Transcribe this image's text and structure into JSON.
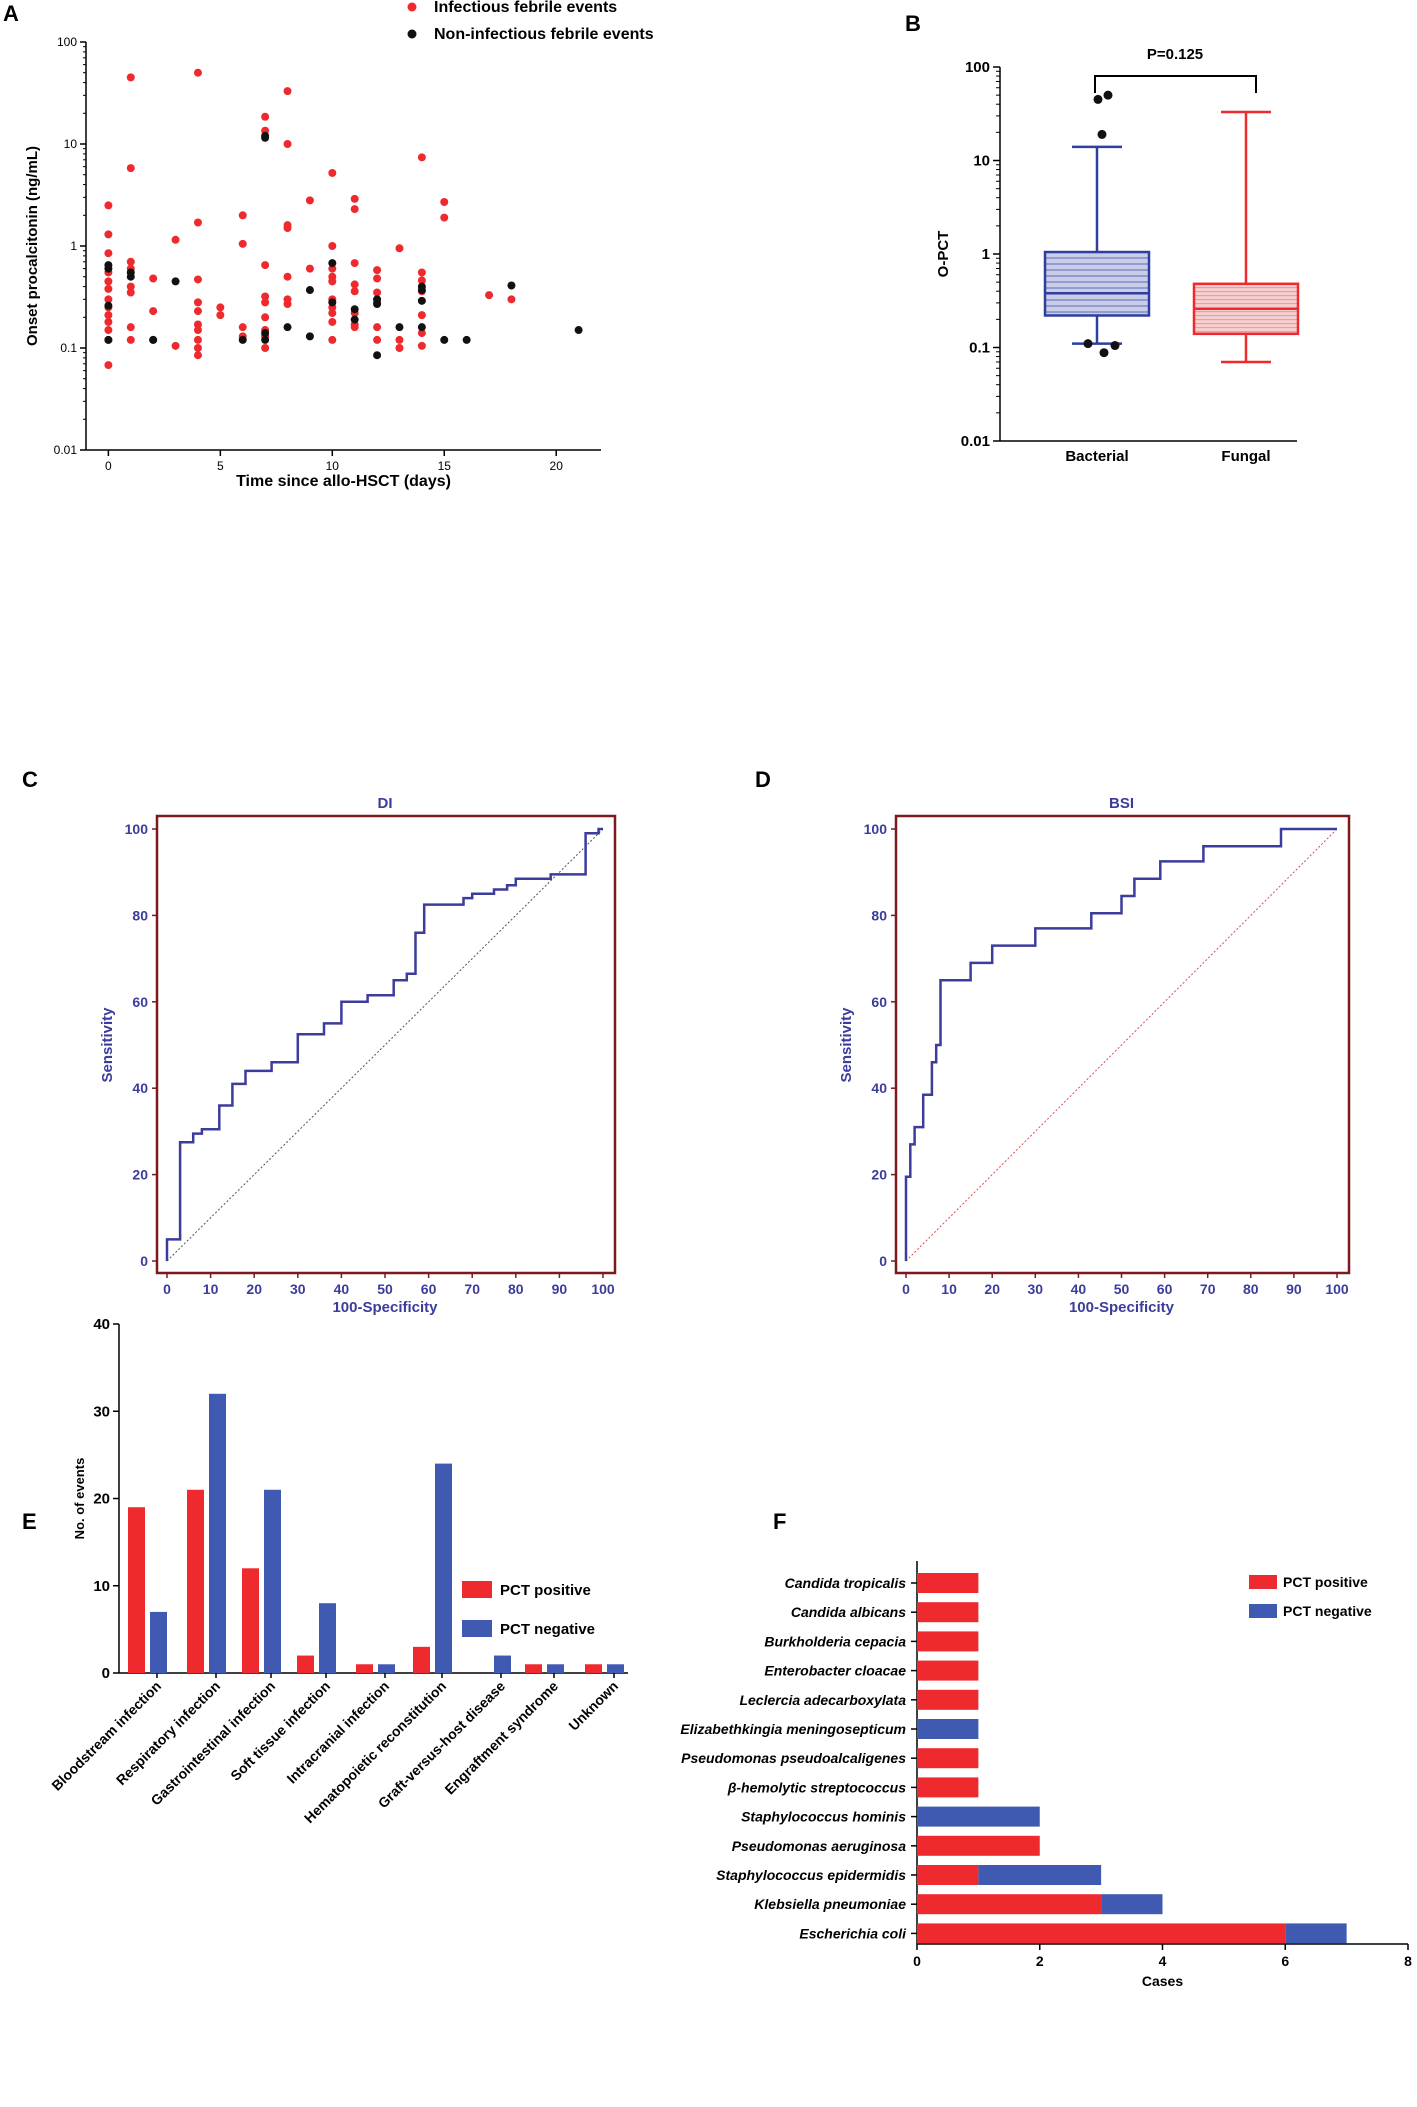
{
  "colors": {
    "red": "#ee2a2e",
    "black": "#111111",
    "blue": "#2e3f9e",
    "redBar": "#ee2a2e",
    "blueBar": "#3f5ab0",
    "roc": "#3b3c9c",
    "maroon": "#7a1a1e",
    "dot": "#555555",
    "diagRed": "#d85050"
  },
  "panel_labels": [
    "A",
    "B",
    "C",
    "D",
    "E",
    "F"
  ],
  "chart_data": [
    {
      "id": "A",
      "type": "scatter",
      "xlabel": "Time since allo-HSCT (days)",
      "ylabel": "Onset procalcitonin (ng/mL)",
      "yscale": "log",
      "xlim": [
        -1,
        22
      ],
      "ylim": [
        0.01,
        100
      ],
      "xticks": [
        0,
        5,
        10,
        15,
        20
      ],
      "yticks": [
        0.01,
        0.1,
        1,
        10,
        100
      ],
      "ytick_labels": [
        "0.01",
        "0.1",
        "1",
        "10",
        "100"
      ],
      "legend": [
        "Infectious febrile events",
        "Non-infectious febrile events"
      ],
      "series": [
        {
          "name": "Infectious febrile events",
          "points": [
            [
              0,
              2.5
            ],
            [
              0,
              1.3
            ],
            [
              0,
              0.85
            ],
            [
              0,
              0.55
            ],
            [
              0,
              0.45
            ],
            [
              0,
              0.38
            ],
            [
              0,
              0.3
            ],
            [
              0,
              0.25
            ],
            [
              0,
              0.21
            ],
            [
              0,
              0.18
            ],
            [
              0,
              0.15
            ],
            [
              0,
              0.12
            ],
            [
              0,
              0.068
            ],
            [
              1,
              45
            ],
            [
              1,
              5.8
            ],
            [
              1,
              0.7
            ],
            [
              1,
              0.6
            ],
            [
              1,
              0.4
            ],
            [
              1,
              0.35
            ],
            [
              1,
              0.16
            ],
            [
              1,
              0.12
            ],
            [
              2,
              0.48
            ],
            [
              2,
              0.23
            ],
            [
              2,
              0.12
            ],
            [
              3,
              1.15
            ],
            [
              3,
              0.105
            ],
            [
              4,
              50
            ],
            [
              4,
              1.7
            ],
            [
              4,
              0.47
            ],
            [
              4,
              0.28
            ],
            [
              4,
              0.23
            ],
            [
              4,
              0.17
            ],
            [
              4,
              0.15
            ],
            [
              4,
              0.12
            ],
            [
              4,
              0.1
            ],
            [
              4,
              0.085
            ],
            [
              5,
              0.25
            ],
            [
              5,
              0.21
            ],
            [
              6,
              2
            ],
            [
              6,
              1.05
            ],
            [
              6,
              0.16
            ],
            [
              6,
              0.13
            ],
            [
              7,
              18.5
            ],
            [
              7,
              13.5
            ],
            [
              7,
              0.65
            ],
            [
              7,
              0.32
            ],
            [
              7,
              0.28
            ],
            [
              7,
              0.2
            ],
            [
              7,
              0.15
            ],
            [
              7,
              0.13
            ],
            [
              7,
              0.1
            ],
            [
              8,
              33
            ],
            [
              8,
              10
            ],
            [
              8,
              1.6
            ],
            [
              8,
              1.5
            ],
            [
              8,
              0.5
            ],
            [
              8,
              0.3
            ],
            [
              8,
              0.27
            ],
            [
              9,
              2.8
            ],
            [
              9,
              0.6
            ],
            [
              10,
              5.2
            ],
            [
              10,
              1.0
            ],
            [
              10,
              0.6
            ],
            [
              10,
              0.5
            ],
            [
              10,
              0.45
            ],
            [
              10,
              0.3
            ],
            [
              10,
              0.25
            ],
            [
              10,
              0.22
            ],
            [
              10,
              0.18
            ],
            [
              10,
              0.12
            ],
            [
              11,
              2.9
            ],
            [
              11,
              2.3
            ],
            [
              11,
              0.68
            ],
            [
              11,
              0.42
            ],
            [
              11,
              0.36
            ],
            [
              11,
              0.22
            ],
            [
              11,
              0.17
            ],
            [
              11,
              0.16
            ],
            [
              12,
              0.58
            ],
            [
              12,
              0.48
            ],
            [
              12,
              0.35
            ],
            [
              12,
              0.28
            ],
            [
              12,
              0.16
            ],
            [
              12,
              0.12
            ],
            [
              13,
              0.95
            ],
            [
              13,
              0.12
            ],
            [
              13,
              0.1
            ],
            [
              14,
              7.4
            ],
            [
              14,
              0.55
            ],
            [
              14,
              0.46
            ],
            [
              14,
              0.36
            ],
            [
              14,
              0.21
            ],
            [
              14,
              0.14
            ],
            [
              14,
              0.105
            ],
            [
              15,
              2.7
            ],
            [
              15,
              1.9
            ],
            [
              17,
              0.33
            ],
            [
              18,
              0.3
            ]
          ]
        },
        {
          "name": "Non-infectious febrile events",
          "points": [
            [
              0,
              0.65
            ],
            [
              0,
              0.6
            ],
            [
              0,
              0.26
            ],
            [
              0,
              0.12
            ],
            [
              1,
              0.55
            ],
            [
              1,
              0.5
            ],
            [
              2,
              0.12
            ],
            [
              3,
              0.45
            ],
            [
              6,
              0.12
            ],
            [
              7,
              12
            ],
            [
              7,
              11.5
            ],
            [
              7,
              0.14
            ],
            [
              7,
              0.12
            ],
            [
              8,
              0.16
            ],
            [
              9,
              0.37
            ],
            [
              9,
              0.13
            ],
            [
              10,
              0.68
            ],
            [
              10,
              0.28
            ],
            [
              11,
              0.24
            ],
            [
              11,
              0.19
            ],
            [
              12,
              0.3
            ],
            [
              12,
              0.27
            ],
            [
              12,
              0.085
            ],
            [
              13,
              0.16
            ],
            [
              14,
              0.4
            ],
            [
              14,
              0.37
            ],
            [
              14,
              0.29
            ],
            [
              14,
              0.16
            ],
            [
              15,
              0.12
            ],
            [
              16,
              0.12
            ],
            [
              18,
              0.41
            ],
            [
              21,
              0.15
            ]
          ]
        }
      ]
    },
    {
      "id": "B",
      "type": "box",
      "ylabel": "O-PCT",
      "yscale": "log",
      "ylim": [
        0.01,
        100
      ],
      "yticks": [
        0.01,
        0.1,
        1,
        10,
        100
      ],
      "ytick_labels": [
        "0.01",
        "0.1",
        "1",
        "10",
        "100"
      ],
      "categories": [
        "Bacterial",
        "Fungal"
      ],
      "p_label": "P=0.125",
      "boxes": [
        {
          "name": "Bacterial",
          "whisker_low": 0.11,
          "q1": 0.22,
          "median": 0.38,
          "q3": 1.05,
          "whisker_high": 14,
          "outliers": [
            45,
            50,
            19,
            0.11,
            0.105,
            0.088
          ]
        },
        {
          "name": "Fungal",
          "whisker_low": 0.07,
          "q1": 0.14,
          "median": 0.26,
          "q3": 0.48,
          "whisker_high": 33,
          "outliers": []
        }
      ]
    },
    {
      "id": "C",
      "type": "line",
      "title": "DI",
      "xlabel": "100-Specificity",
      "ylabel": "Sensitivity",
      "xlim": [
        0,
        100
      ],
      "ylim": [
        0,
        100
      ],
      "ticks": [
        0,
        10,
        20,
        30,
        40,
        50,
        60,
        70,
        80,
        90,
        100
      ],
      "yticks": [
        0,
        20,
        40,
        60,
        80,
        100
      ],
      "roc": [
        [
          0,
          0
        ],
        [
          0,
          5
        ],
        [
          3,
          5
        ],
        [
          3,
          27.5
        ],
        [
          6,
          27.5
        ],
        [
          6,
          29.5
        ],
        [
          8,
          29.5
        ],
        [
          8,
          30.5
        ],
        [
          12,
          30.5
        ],
        [
          12,
          36
        ],
        [
          15,
          36
        ],
        [
          15,
          41
        ],
        [
          18,
          41
        ],
        [
          18,
          44
        ],
        [
          24,
          44
        ],
        [
          24,
          46
        ],
        [
          30,
          46
        ],
        [
          30,
          52.5
        ],
        [
          36,
          52.5
        ],
        [
          36,
          55
        ],
        [
          40,
          55
        ],
        [
          40,
          57
        ],
        [
          40,
          60
        ],
        [
          46,
          60
        ],
        [
          46,
          61.5
        ],
        [
          52,
          61.5
        ],
        [
          52,
          65
        ],
        [
          55,
          65
        ],
        [
          55,
          66.5
        ],
        [
          57,
          66.5
        ],
        [
          57,
          76
        ],
        [
          59,
          76
        ],
        [
          59,
          82.5
        ],
        [
          68,
          82.5
        ],
        [
          68,
          84
        ],
        [
          70,
          84
        ],
        [
          70,
          85
        ],
        [
          75,
          85
        ],
        [
          75,
          86
        ],
        [
          78,
          86
        ],
        [
          78,
          87
        ],
        [
          80,
          87
        ],
        [
          80,
          88.5
        ],
        [
          88,
          88.5
        ],
        [
          88,
          89.5
        ],
        [
          96,
          89.5
        ],
        [
          96,
          99
        ],
        [
          99,
          99
        ],
        [
          99,
          100
        ],
        [
          100,
          100
        ]
      ]
    },
    {
      "id": "D",
      "type": "line",
      "title": "BSI",
      "xlabel": "100-Specificity",
      "ylabel": "Sensitivity",
      "xlim": [
        0,
        100
      ],
      "ylim": [
        0,
        100
      ],
      "ticks": [
        0,
        10,
        20,
        30,
        40,
        50,
        60,
        70,
        80,
        90,
        100
      ],
      "yticks": [
        0,
        20,
        40,
        60,
        80,
        100
      ],
      "roc": [
        [
          0,
          0
        ],
        [
          0,
          19.5
        ],
        [
          1,
          19.5
        ],
        [
          1,
          27
        ],
        [
          2,
          27
        ],
        [
          2,
          31
        ],
        [
          4,
          31
        ],
        [
          4,
          38.5
        ],
        [
          6,
          38.5
        ],
        [
          6,
          46
        ],
        [
          7,
          46
        ],
        [
          7,
          50
        ],
        [
          8,
          50
        ],
        [
          8,
          65
        ],
        [
          15,
          65
        ],
        [
          15,
          69
        ],
        [
          20,
          69
        ],
        [
          20,
          73
        ],
        [
          30,
          73
        ],
        [
          30,
          77
        ],
        [
          43,
          77
        ],
        [
          43,
          80.5
        ],
        [
          50,
          80.5
        ],
        [
          50,
          84.5
        ],
        [
          53,
          84.5
        ],
        [
          53,
          88.5
        ],
        [
          59,
          88.5
        ],
        [
          59,
          92.5
        ],
        [
          69,
          92.5
        ],
        [
          69,
          96
        ],
        [
          87,
          96
        ],
        [
          87,
          100
        ],
        [
          100,
          100
        ]
      ]
    },
    {
      "id": "E",
      "type": "bar",
      "ylabel": "No. of events",
      "ylim": [
        0,
        40
      ],
      "yticks": [
        0,
        10,
        20,
        30,
        40
      ],
      "categories": [
        "Bloodstream infection",
        "Respiratory infection",
        "Gastrointestinal infection",
        "Soft tissue infection",
        "Intracranial infection",
        "Hematopoietic reconstitution",
        "Graft-versus-host disease",
        "Engraftment syndrome",
        "Unknown"
      ],
      "series": [
        {
          "name": "PCT positive",
          "values": [
            19,
            21,
            12,
            2,
            1,
            3,
            0,
            1,
            1
          ]
        },
        {
          "name": "PCT negative",
          "values": [
            7,
            32,
            21,
            8,
            1,
            24,
            2,
            1,
            1
          ]
        }
      ]
    },
    {
      "id": "F",
      "type": "bar",
      "orientation": "horizontal",
      "stacked": true,
      "xlabel": "Cases",
      "xlim": [
        0,
        8
      ],
      "xticks": [
        0,
        2,
        4,
        6,
        8
      ],
      "categories": [
        "Candida tropicalis",
        "Candida albicans",
        "Burkholderia cepacia",
        "Enterobacter cloacae",
        "Leclercia adecarboxylata",
        "Elizabethkingia meningosepticum",
        "Pseudomonas pseudoalcaligenes",
        "β-hemolytic streptococcus",
        "Staphylococcus hominis",
        "Pseudomonas aeruginosa",
        "Staphylococcus epidermidis",
        "Klebsiella pneumoniae",
        "Escherichia coli"
      ],
      "series": [
        {
          "name": "PCT positive",
          "values": [
            1,
            1,
            1,
            1,
            1,
            0,
            1,
            1,
            0,
            2,
            1,
            3,
            6
          ]
        },
        {
          "name": "PCT negative",
          "values": [
            0,
            0,
            0,
            0,
            0,
            1,
            0,
            0,
            2,
            0,
            2,
            1,
            1
          ]
        }
      ]
    }
  ]
}
